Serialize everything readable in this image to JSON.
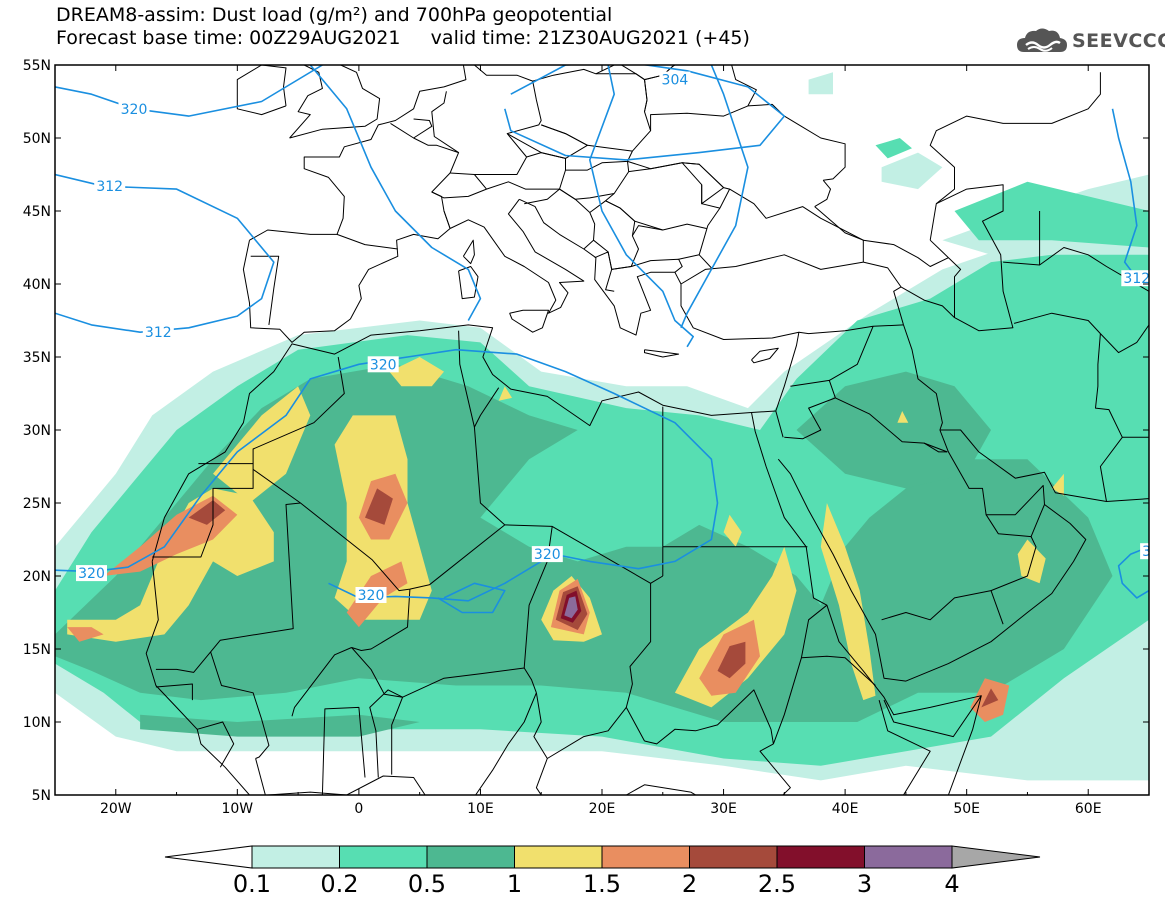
{
  "header": {
    "title_line1": "DREAM8-assim: Dust load (g/m²) and 700hPa geopotential",
    "title_line2": "Forecast base time: 00Z29AUG2021     valid time: 21Z30AUG2021 (+45)",
    "logo_text": "SEEVCCC"
  },
  "map": {
    "lon_range": [
      -25,
      65
    ],
    "lat_range": [
      5,
      55
    ],
    "lat_ticks": [
      {
        "value": 55,
        "label": "55N"
      },
      {
        "value": 50,
        "label": "50N"
      },
      {
        "value": 45,
        "label": "45N"
      },
      {
        "value": 40,
        "label": "40N"
      },
      {
        "value": 35,
        "label": "35N"
      },
      {
        "value": 30,
        "label": "30N"
      },
      {
        "value": 25,
        "label": "25N"
      },
      {
        "value": 20,
        "label": "20N"
      },
      {
        "value": 15,
        "label": "15N"
      },
      {
        "value": 10,
        "label": "10N"
      },
      {
        "value": 5,
        "label": "5N"
      }
    ],
    "lon_ticks": [
      {
        "value": -20,
        "label": "20W"
      },
      {
        "value": -10,
        "label": "10W"
      },
      {
        "value": 0,
        "label": "0"
      },
      {
        "value": 10,
        "label": "10E"
      },
      {
        "value": 20,
        "label": "20E"
      },
      {
        "value": 30,
        "label": "30E"
      },
      {
        "value": 40,
        "label": "40E"
      },
      {
        "value": 50,
        "label": "50E"
      },
      {
        "value": 60,
        "label": "60E"
      }
    ],
    "contour_labels": [
      {
        "text": "320",
        "lon": -18.5,
        "lat": 52.0
      },
      {
        "text": "312",
        "lon": -20.5,
        "lat": 46.7
      },
      {
        "text": "304",
        "lon": 26.0,
        "lat": 54.0
      },
      {
        "text": "312",
        "lon": -16.5,
        "lat": 36.7
      },
      {
        "text": "320",
        "lon": 2.0,
        "lat": 34.5
      },
      {
        "text": "320",
        "lon": -22.0,
        "lat": 20.2
      },
      {
        "text": "320",
        "lon": 1.0,
        "lat": 18.7
      },
      {
        "text": "320",
        "lon": 15.5,
        "lat": 21.5
      },
      {
        "text": "312",
        "lon": 64.0,
        "lat": 40.4
      },
      {
        "text": "3",
        "lon": 64.8,
        "lat": 21.7
      }
    ]
  },
  "colorbar": {
    "levels": [
      "0.1",
      "0.2",
      "0.5",
      "1",
      "1.5",
      "2",
      "2.5",
      "3",
      "4"
    ],
    "colors": [
      "#ffffff",
      "#c2efe4",
      "#57deb2",
      "#4db891",
      "#f1e06d",
      "#e98e60",
      "#a54a3b",
      "#820f2b",
      "#8b6a9c",
      "#a7a7a7"
    ]
  },
  "dust_colors": {
    "light": "#c2efe4",
    "mid": "#57deb2",
    "dark": "#4db891",
    "yellow": "#f1e06d",
    "orange": "#e98e60",
    "brown": "#a54a3b",
    "maroon": "#820f2b",
    "purple": "#8b6a9c",
    "contour": "#1a8fe0"
  }
}
